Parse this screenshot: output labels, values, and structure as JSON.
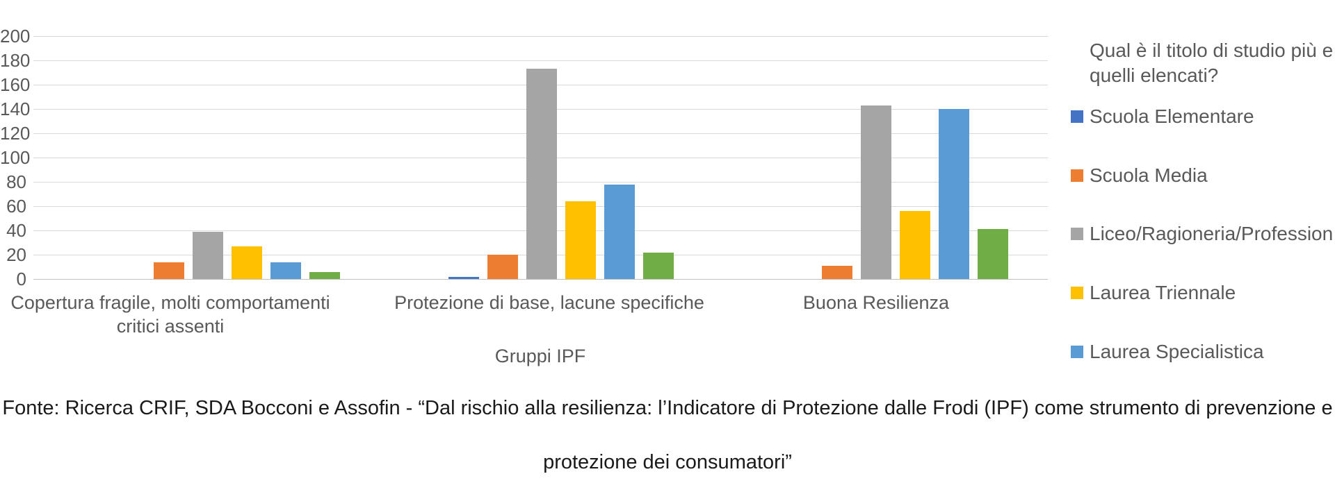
{
  "chart_data": {
    "type": "bar",
    "title": "",
    "xlabel": "Gruppi IPF",
    "ylabel": "",
    "ylim": [
      0,
      200
    ],
    "ytick_step": 20,
    "grid": true,
    "categories": [
      "Copertura fragile, molti comportamenti critici assenti",
      "Protezione di base, lacune specifiche",
      "Buona Resilienza"
    ],
    "series": [
      {
        "name": "Scuola Elementare",
        "color": "#4472C4",
        "values": [
          0,
          2,
          0
        ],
        "legend_visible": true
      },
      {
        "name": "Scuola Media",
        "color": "#ED7D31",
        "values": [
          14,
          20,
          11
        ],
        "legend_visible": true
      },
      {
        "name": "Liceo/Ragioneria/Profession",
        "color": "#A5A5A5",
        "values": [
          39,
          173,
          143
        ],
        "legend_visible": true
      },
      {
        "name": "Laurea Triennale",
        "color": "#FFC000",
        "values": [
          27,
          64,
          56
        ],
        "legend_visible": true
      },
      {
        "name": "Laurea Specialistica",
        "color": "#5B9BD5",
        "values": [
          14,
          78,
          140
        ],
        "legend_visible": true
      },
      {
        "name": null,
        "color": "#70AD47",
        "values": [
          6,
          22,
          41
        ],
        "legend_visible": false
      }
    ],
    "legend": {
      "position": "right",
      "truncated_at_right_edge": true,
      "title_line1": "Qual è il titolo di studio più e",
      "title_line2": "quelli elencati?"
    }
  },
  "footer": {
    "line1": "Fonte: Ricerca CRIF, SDA Bocconi e Assofin - “Dal rischio alla resilienza: l’Indicatore di Protezione dalle Frodi (IPF) come strumento di prevenzione e",
    "line2": "protezione dei consumatori”"
  },
  "colors": {
    "gridline": "#d9d9d9",
    "axis_line": "#c0c0c0",
    "chart_text": "#595959",
    "footer_text": "#1a1a1a",
    "background": "#ffffff"
  }
}
